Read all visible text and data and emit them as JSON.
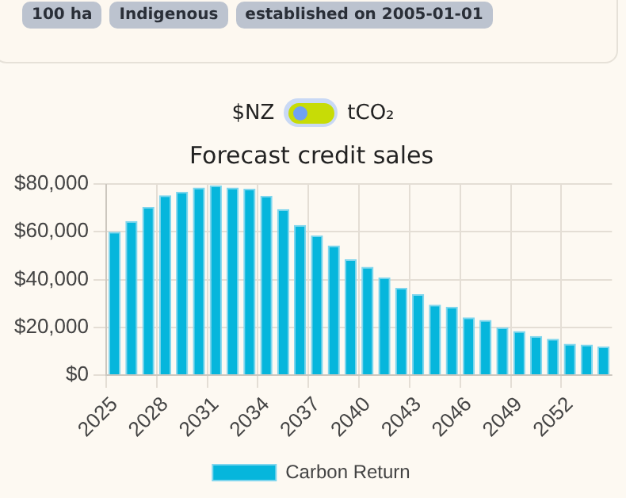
{
  "chart_data": {
    "type": "bar",
    "title": "Forecast credit sales",
    "annotations": [
      "100 ha",
      "Indigenous",
      "established on 2005-01-01",
      "$NZ",
      "tCO₂"
    ],
    "categories": [
      "2025",
      null,
      null,
      "2028",
      null,
      null,
      "2031",
      null,
      null,
      "2034",
      null,
      null,
      "2037",
      null,
      null,
      "2040",
      null,
      null,
      "2043",
      null,
      null,
      "2046",
      null,
      null,
      "2049",
      null,
      null,
      "2052",
      null,
      null
    ],
    "series": [
      {
        "name": "Carbon Return",
        "color": "#06b6dc",
        "values": [
          60000,
          64500,
          70400,
          75300,
          76800,
          78500,
          79400,
          78500,
          78000,
          75000,
          69500,
          62800,
          58400,
          54300,
          48500,
          45300,
          40900,
          36500,
          33900,
          29500,
          28600,
          24200,
          23100,
          19900,
          18400,
          16400,
          15200,
          13100,
          12800,
          12000
        ]
      }
    ],
    "ylim": [
      0,
      80000
    ],
    "yticks": [
      {
        "value": 0,
        "label": "$0"
      },
      {
        "value": 20000,
        "label": "$20,000"
      },
      {
        "value": 40000,
        "label": "$40,000"
      },
      {
        "value": 60000,
        "label": "$60,000"
      },
      {
        "value": 80000,
        "label": "$80,000"
      }
    ],
    "grid": true,
    "legend": "bottom"
  }
}
